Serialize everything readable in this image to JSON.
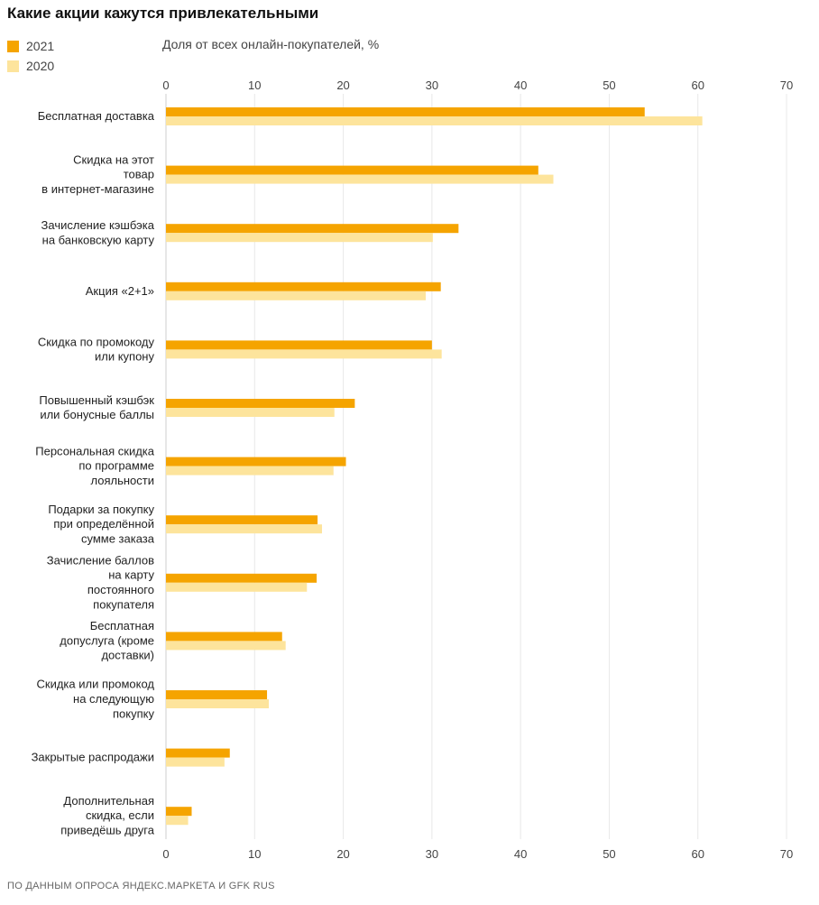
{
  "colors": {
    "series_2021": "#F5A400",
    "series_2020": "#FDE49C",
    "grid": "#E8E8E8"
  },
  "footer": "ПО ДАННЫМ ОПРОСА ЯНДЕКС.МАРКЕТА И GFK RUS",
  "chart_data": {
    "type": "bar",
    "orientation": "horizontal",
    "title": "Какие акции кажутся привлекательными",
    "xlabel": "Доля от всех онлайн-покупателей, %",
    "ylabel": "",
    "xlim": [
      0,
      70
    ],
    "xticks": [
      0,
      10,
      20,
      30,
      40,
      50,
      60,
      70
    ],
    "grid": true,
    "legend_position": "top-left",
    "categories": [
      [
        "Бесплатная доставка"
      ],
      [
        "Скидка на этот",
        "товар",
        "в интернет-магазине"
      ],
      [
        "Зачисление кэшбэка",
        "на банковскую карту"
      ],
      [
        "Акция «2+1»"
      ],
      [
        "Скидка по промокоду",
        "или купону"
      ],
      [
        "Повышенный кэшбэк",
        "или бонусные баллы"
      ],
      [
        "Персональная скидка",
        "по программе",
        "лояльности"
      ],
      [
        "Подарки за покупку",
        "при определённой",
        "сумме заказа"
      ],
      [
        "Зачисление баллов",
        "на карту",
        "постоянного",
        "покупателя"
      ],
      [
        "Бесплатная",
        "допуслуга (кроме",
        "доставки)"
      ],
      [
        "Скидка или промокод",
        "на следующую",
        "покупку"
      ],
      [
        "Закрытые распродажи"
      ],
      [
        "Дополнительная",
        "скидка, если",
        "приведёшь друга"
      ]
    ],
    "series": [
      {
        "name": "2021",
        "values": [
          54,
          42,
          33,
          31,
          30,
          21.3,
          20.3,
          17.1,
          17,
          13.1,
          11.4,
          7.2,
          2.9
        ]
      },
      {
        "name": "2020",
        "values": [
          60.5,
          43.7,
          30.1,
          29.3,
          31.1,
          19,
          18.9,
          17.6,
          15.9,
          13.5,
          11.6,
          6.6,
          2.5
        ]
      }
    ]
  }
}
